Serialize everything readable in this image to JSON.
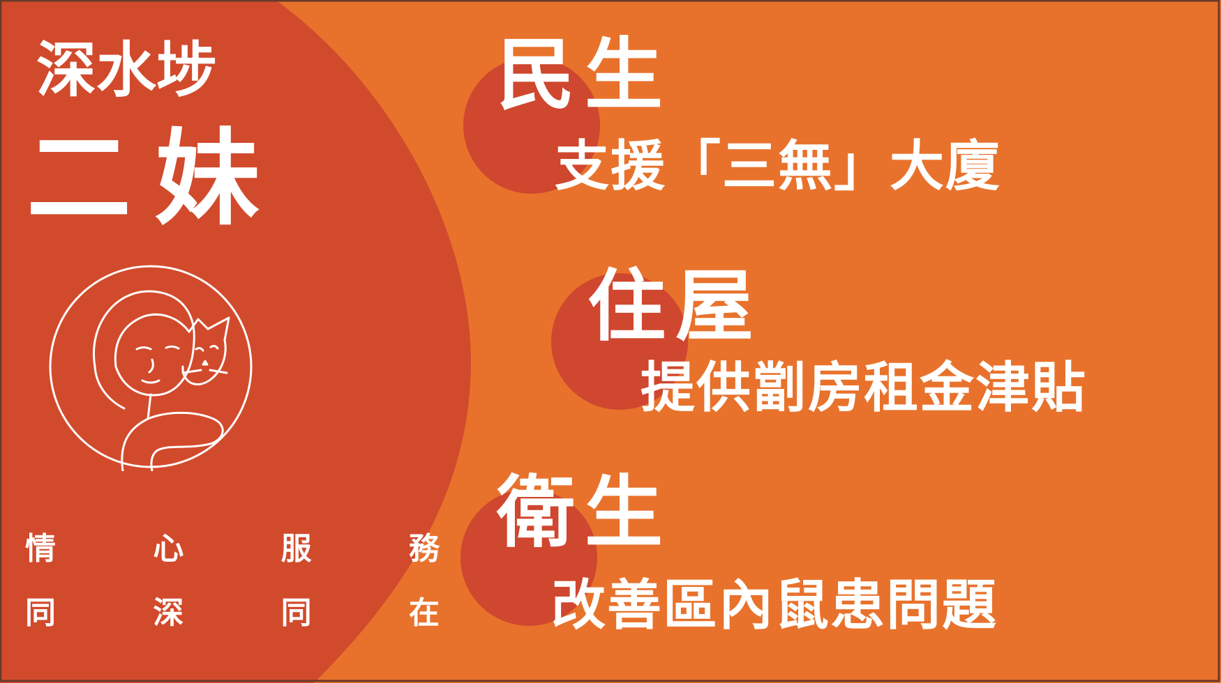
{
  "candidate": {
    "district": "深水埗",
    "nickname": "二妹"
  },
  "slogans": [
    "情 心 服 務",
    "同 深 同 在"
  ],
  "platform": [
    {
      "heading": "民生",
      "point": "支援「三無」大廈"
    },
    {
      "heading": "住屋",
      "point": "提供劏房租金津貼"
    },
    {
      "heading": "衛生",
      "point": "改善區內鼠患問題"
    }
  ],
  "colors": {
    "background_orange": "#e8722c",
    "left_panel_red": "#d24a2c",
    "accent_circle": "#cf472e",
    "frame": "#6a3a2a",
    "text": "#ffffff"
  },
  "icons": {
    "portrait": "woman-with-cat-line-drawing"
  }
}
